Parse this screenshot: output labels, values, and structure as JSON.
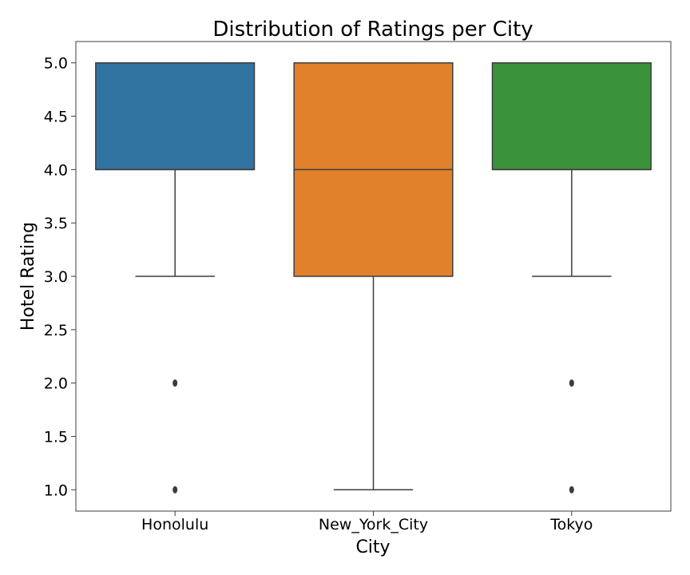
{
  "chart_data": {
    "type": "box",
    "title": "Distribution of Ratings per City",
    "xlabel": "City",
    "ylabel": "Hotel Rating",
    "ylim": [
      0.8,
      5.2
    ],
    "yticks": [
      1.0,
      1.5,
      2.0,
      2.5,
      3.0,
      3.5,
      4.0,
      4.5,
      5.0
    ],
    "ytick_labels": [
      "1.0",
      "1.5",
      "2.0",
      "2.5",
      "3.0",
      "3.5",
      "4.0",
      "4.5",
      "5.0"
    ],
    "grid": false,
    "categories": [
      "Honolulu",
      "New_York_City",
      "Tokyo"
    ],
    "series": [
      {
        "category": "Honolulu",
        "color": "#3274a1",
        "whisker_low": 3.0,
        "q1": 4.0,
        "median": 4.0,
        "q3": 5.0,
        "whisker_high": 5.0,
        "outliers": [
          2.0,
          1.0
        ]
      },
      {
        "category": "New_York_City",
        "color": "#e1812c",
        "whisker_low": 1.0,
        "q1": 3.0,
        "median": 4.0,
        "q3": 5.0,
        "whisker_high": 5.0,
        "outliers": []
      },
      {
        "category": "Tokyo",
        "color": "#3a923a",
        "whisker_low": 3.0,
        "q1": 4.0,
        "median": 4.0,
        "q3": 5.0,
        "whisker_high": 5.0,
        "outliers": [
          2.0,
          1.0
        ]
      }
    ]
  }
}
